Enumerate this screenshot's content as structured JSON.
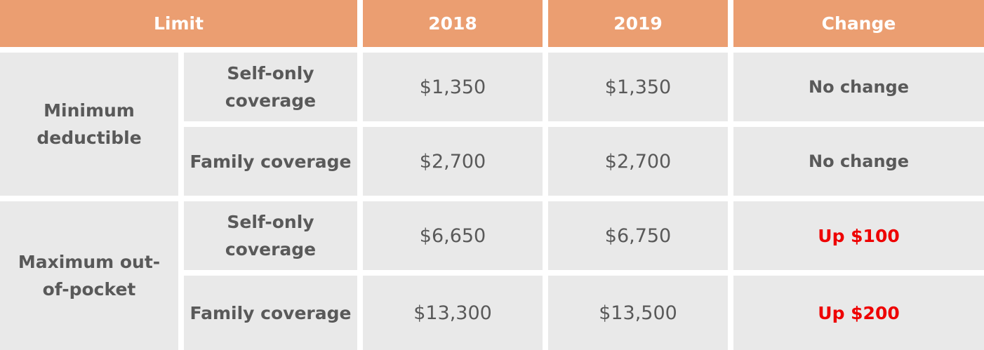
{
  "table": {
    "headers": {
      "limit": "Limit",
      "year_a": "2018",
      "year_b": "2019",
      "change": "Change"
    },
    "groups": [
      {
        "label": "Minimum deductible",
        "rows": [
          {
            "coverage": "Self-only coverage",
            "y2018": "$1,350",
            "y2019": "$1,350",
            "change": "No change",
            "change_highlight": false
          },
          {
            "coverage": "Family coverage",
            "y2018": "$2,700",
            "y2019": "$2,700",
            "change": "No change",
            "change_highlight": false
          }
        ]
      },
      {
        "label": "Maximum out-of-pocket",
        "rows": [
          {
            "coverage": "Self-only coverage",
            "y2018": "$6,650",
            "y2019": "$6,750",
            "change": "Up $100",
            "change_highlight": true
          },
          {
            "coverage": "Family coverage",
            "y2018": "$13,300",
            "y2019": "$13,500",
            "change": "Up $200",
            "change_highlight": true
          }
        ]
      }
    ],
    "colors": {
      "header_background": "#eb9e71",
      "cell_background": "#e9e9e9",
      "text": "#595959",
      "increase": "#ee0000"
    }
  }
}
